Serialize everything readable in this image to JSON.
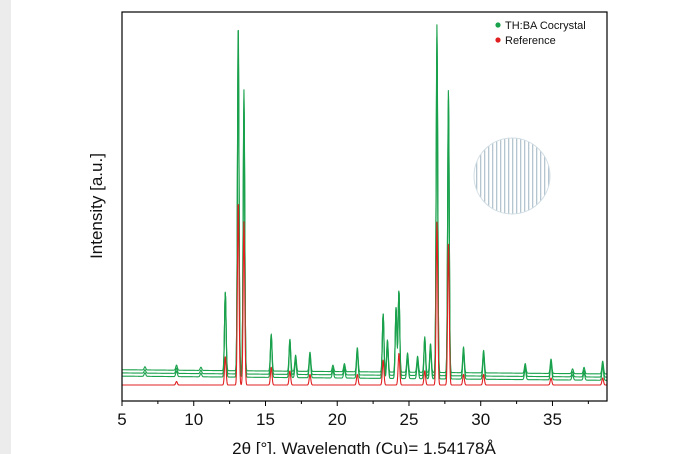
{
  "chart_data": {
    "type": "line",
    "title": "",
    "xlabel": "2θ [°], Wavelength (Cu)= 1.54178Å",
    "ylabel": "Intensity [a.u.]",
    "xlim": [
      5,
      38.8
    ],
    "ylim": [
      0,
      100
    ],
    "xticks": [
      "5",
      "10",
      "15",
      "20",
      "25",
      "30",
      "35"
    ],
    "legend_position": "top-right",
    "grid": false,
    "series": [
      {
        "name": "TH:BA Cocrystal",
        "color": "#1aa14c",
        "baseline": 2.5,
        "offsets": [
          0,
          0.9,
          1.8
        ],
        "peaks": [
          [
            6.6,
            1.0
          ],
          [
            8.8,
            1.6
          ],
          [
            10.5,
            1.0
          ],
          [
            12.2,
            24.0
          ],
          [
            13.1,
            100.0
          ],
          [
            13.5,
            81.0
          ],
          [
            15.4,
            11.5
          ],
          [
            16.7,
            10.0
          ],
          [
            17.1,
            5.0
          ],
          [
            18.1,
            6.0
          ],
          [
            19.7,
            2.0
          ],
          [
            20.5,
            2.5
          ],
          [
            21.4,
            7.5
          ],
          [
            23.2,
            18.0
          ],
          [
            23.5,
            10.0
          ],
          [
            24.1,
            20.0
          ],
          [
            24.3,
            25.0
          ],
          [
            24.9,
            6.0
          ],
          [
            25.6,
            5.0
          ],
          [
            26.1,
            11.0
          ],
          [
            26.5,
            9.0
          ],
          [
            26.95,
            100.0
          ],
          [
            27.75,
            82.0
          ],
          [
            28.8,
            8.0
          ],
          [
            30.2,
            7.0
          ],
          [
            33.1,
            3.0
          ],
          [
            34.9,
            4.5
          ],
          [
            36.4,
            1.5
          ],
          [
            37.2,
            2.0
          ],
          [
            38.5,
            4.0
          ]
        ]
      },
      {
        "name": "Reference",
        "color": "#e02020",
        "baseline": 0.0,
        "offsets": [
          0
        ],
        "peaks": [
          [
            8.8,
            1.0
          ],
          [
            12.2,
            8.0
          ],
          [
            13.1,
            52.0
          ],
          [
            13.5,
            46.0
          ],
          [
            15.4,
            5.0
          ],
          [
            16.7,
            4.0
          ],
          [
            18.1,
            3.0
          ],
          [
            21.4,
            3.0
          ],
          [
            23.2,
            7.0
          ],
          [
            24.3,
            9.0
          ],
          [
            26.1,
            4.0
          ],
          [
            26.95,
            46.0
          ],
          [
            27.75,
            40.0
          ],
          [
            28.8,
            3.0
          ],
          [
            30.2,
            3.0
          ],
          [
            34.9,
            2.0
          ],
          [
            38.5,
            2.0
          ]
        ]
      }
    ]
  }
}
